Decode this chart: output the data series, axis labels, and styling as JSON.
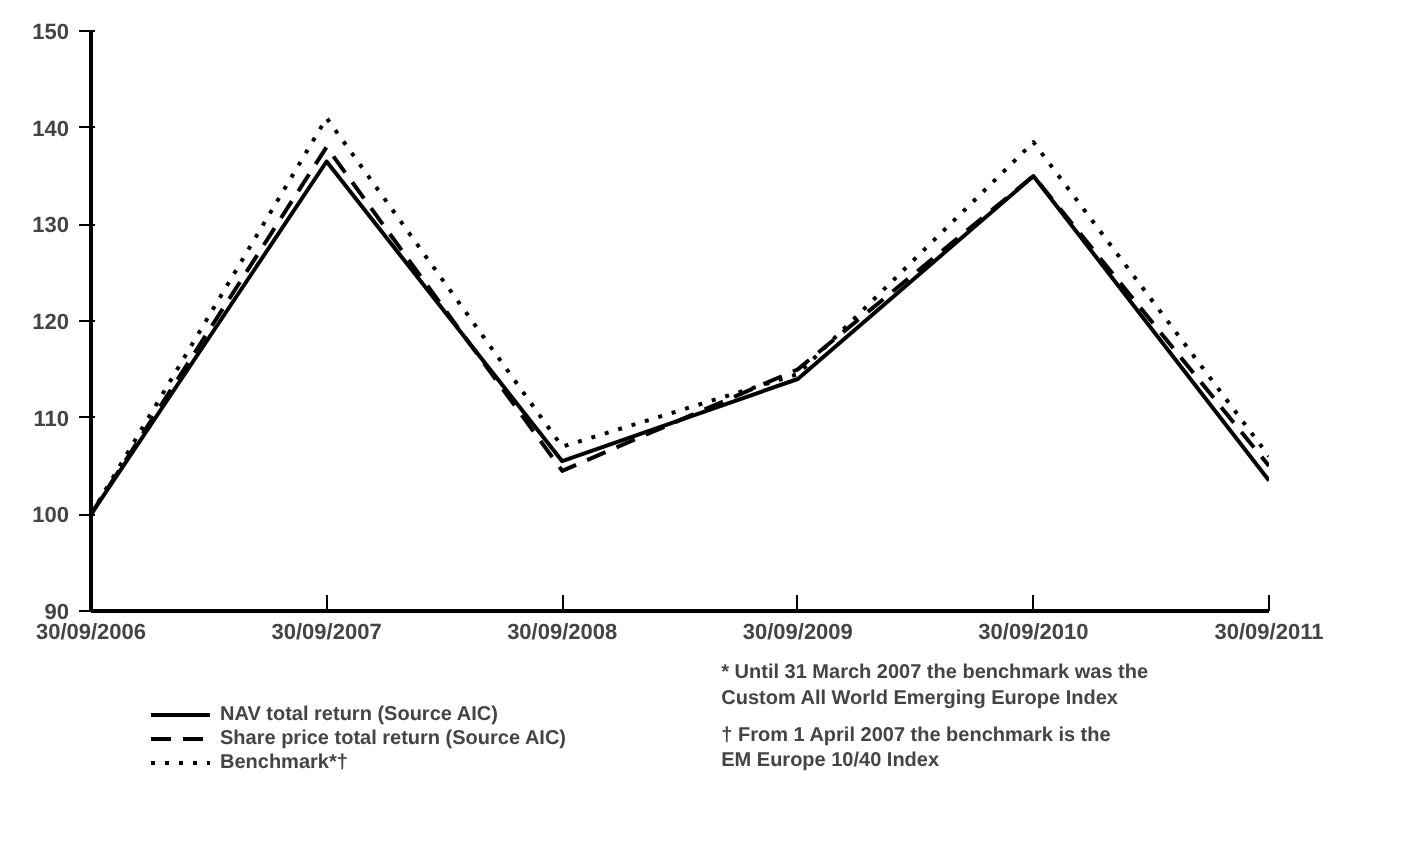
{
  "chart_data": {
    "type": "line",
    "categories": [
      "30/09/2006",
      "30/09/2007",
      "30/09/2008",
      "30/09/2009",
      "30/09/2010",
      "30/09/2011"
    ],
    "series": [
      {
        "name": "NAV total return (Source AIC)",
        "color": "#000000",
        "line_style": "solid",
        "values": [
          100,
          136.5,
          105.5,
          114,
          135,
          103.5
        ]
      },
      {
        "name": "Share price total return (Source AIC)",
        "color": "#000000",
        "line_style": "dashed",
        "values": [
          100,
          138,
          104.5,
          115,
          135,
          105
        ]
      },
      {
        "name": "Benchmark*†",
        "color": "#000000",
        "line_style": "dotted",
        "values": [
          100,
          141,
          107,
          114.5,
          138.5,
          106
        ]
      }
    ],
    "ylim": [
      90,
      150
    ],
    "yticks": [
      90,
      100,
      110,
      120,
      130,
      140,
      150
    ],
    "grid": false,
    "legend": "bottom",
    "marker": "none",
    "annotations": [
      "* Until 31 March 2007 the benchmark was the\nCustom All World Emerging Europe Index",
      "† From 1 April 2007 the benchmark is the\nEM Europe 10/40 Index"
    ]
  }
}
